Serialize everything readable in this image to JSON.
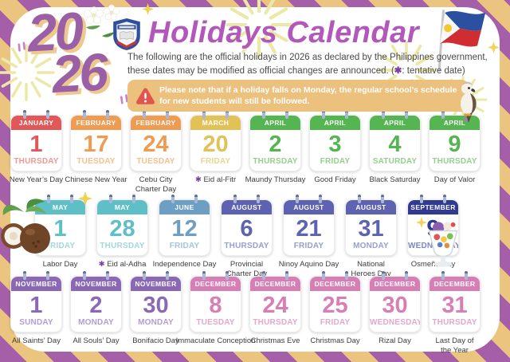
{
  "page": {
    "year_top": "20",
    "year_bottom": "26",
    "title": "Holidays Calendar",
    "subtitle_line1": "The following are the official holidays in 2026 as declared by the Philippines government,",
    "subtitle_line2": "these dates may be modified as official changes are announced.  (",
    "legend_star": "✱",
    "legend_text": ": tentative date)",
    "notice": "Please note that if a holiday falls on Monday, the regular school’s schedule for new students will still be followed."
  },
  "colors": {
    "stripe_purple": "#a55fa8",
    "stripe_tan": "#ebc57f",
    "title_purple": "#b258bb",
    "year_purple": "#9a5fa5",
    "year_shadow": "#edc98f",
    "notice_bg": "#ecc17d",
    "tentative_star_purple": "#7c3f9e"
  },
  "icons": [
    "school-logo-icon",
    "philippine-flag-icon",
    "eagle-icon",
    "coconut-icon",
    "halo-halo-icon",
    "sampaguita-flowers-icon",
    "sparkle-icon",
    "firework-burst-icon",
    "warning-triangle-icon",
    "calendar-pin-icon",
    "tentative-star-icon"
  ],
  "calendar": {
    "month_colors": {
      "JANUARY": {
        "main": "#e25858",
        "light": "#ee9a93"
      },
      "FEBRUARY": {
        "main": "#ef9b51",
        "light": "#f4c08c"
      },
      "MARCH": {
        "main": "#e2c257",
        "light": "#e9d494"
      },
      "APRIL": {
        "main": "#55b551",
        "light": "#95cf8e"
      },
      "MAY": {
        "main": "#5fbfc6",
        "light": "#a2d8dd"
      },
      "JUNE": {
        "main": "#6d9fc5",
        "light": "#a5c4de"
      },
      "AUGUST": {
        "main": "#5d63b0",
        "light": "#989ed2"
      },
      "SEPTEMBER": {
        "main": "#303a92",
        "light": "#7e86c4"
      },
      "NOVEMBER": {
        "main": "#8a68b5",
        "light": "#b59bd4"
      },
      "DECEMBER": {
        "main": "#d77fb5",
        "light": "#e3a8cd"
      }
    },
    "rows": [
      [
        {
          "month": "JANUARY",
          "day": "1",
          "weekday": "THURSDAY",
          "holiday_lines": [
            "New Year’s Day"
          ],
          "tentative": false
        },
        {
          "month": "FEBRUARY",
          "day": "17",
          "weekday": "TUESDAY",
          "holiday_lines": [
            "Chinese New Year"
          ],
          "tentative": false
        },
        {
          "month": "FEBRUARY",
          "day": "24",
          "weekday": "TUESDAY",
          "holiday_lines": [
            "Cebu City",
            "Charter Day"
          ],
          "tentative": false
        },
        {
          "month": "MARCH",
          "day": "20",
          "weekday": "FRIDAY",
          "holiday_lines": [
            "Eid al-Fitr"
          ],
          "tentative": true
        },
        {
          "month": "APRIL",
          "day": "2",
          "weekday": "THURSDAY",
          "holiday_lines": [
            "Maundy Thursday"
          ],
          "tentative": false
        },
        {
          "month": "APRIL",
          "day": "3",
          "weekday": "FRIDAY",
          "holiday_lines": [
            "Good Friday"
          ],
          "tentative": false
        },
        {
          "month": "APRIL",
          "day": "4",
          "weekday": "SATURDAY",
          "holiday_lines": [
            "Black Saturday"
          ],
          "tentative": false
        },
        {
          "month": "APRIL",
          "day": "9",
          "weekday": "THURSDAY",
          "holiday_lines": [
            "Day of Valor"
          ],
          "tentative": false
        }
      ],
      [
        {
          "month": "MAY",
          "day": "1",
          "weekday": "FRIDAY",
          "holiday_lines": [
            "Labor Day"
          ],
          "tentative": false
        },
        {
          "month": "MAY",
          "day": "28",
          "weekday": "THURSDAY",
          "holiday_lines": [
            "Eid al-Adha"
          ],
          "tentative": true
        },
        {
          "month": "JUNE",
          "day": "12",
          "weekday": "FRIDAY",
          "holiday_lines": [
            "Independence Day"
          ],
          "tentative": false
        },
        {
          "month": "AUGUST",
          "day": "6",
          "weekday": "THURSDAY",
          "holiday_lines": [
            "Provincial",
            "Charter Day"
          ],
          "tentative": false
        },
        {
          "month": "AUGUST",
          "day": "21",
          "weekday": "FRIDAY",
          "holiday_lines": [
            "Ninoy Aquino Day"
          ],
          "tentative": false
        },
        {
          "month": "AUGUST",
          "day": "31",
          "weekday": "MONDAY",
          "holiday_lines": [
            "National",
            "Heroes Day"
          ],
          "tentative": false
        },
        {
          "month": "SEPTEMBER",
          "day": "9",
          "weekday": "WEDNESDAY",
          "holiday_lines": [
            "Osmeña Day"
          ],
          "tentative": false
        }
      ],
      [
        {
          "month": "NOVEMBER",
          "day": "1",
          "weekday": "SUNDAY",
          "holiday_lines": [
            "All Saints’ Day"
          ],
          "tentative": false
        },
        {
          "month": "NOVEMBER",
          "day": "2",
          "weekday": "MONDAY",
          "holiday_lines": [
            "All Souls’ Day"
          ],
          "tentative": false
        },
        {
          "month": "NOVEMBER",
          "day": "30",
          "weekday": "MONDAY",
          "holiday_lines": [
            "Bonifacio Day"
          ],
          "tentative": false
        },
        {
          "month": "DECEMBER",
          "day": "8",
          "weekday": "TUESDAY",
          "holiday_lines": [
            "Immaculate Conception"
          ],
          "tentative": false
        },
        {
          "month": "DECEMBER",
          "day": "24",
          "weekday": "THURSDAY",
          "holiday_lines": [
            "Christmas Eve"
          ],
          "tentative": false
        },
        {
          "month": "DECEMBER",
          "day": "25",
          "weekday": "FRIDAY",
          "holiday_lines": [
            "Christmas Day"
          ],
          "tentative": false
        },
        {
          "month": "DECEMBER",
          "day": "30",
          "weekday": "WEDNESDAY",
          "holiday_lines": [
            "Rizal Day"
          ],
          "tentative": false
        },
        {
          "month": "DECEMBER",
          "day": "31",
          "weekday": "THURSDAY",
          "holiday_lines": [
            "Last Day of",
            "the Year"
          ],
          "tentative": false
        }
      ]
    ]
  }
}
